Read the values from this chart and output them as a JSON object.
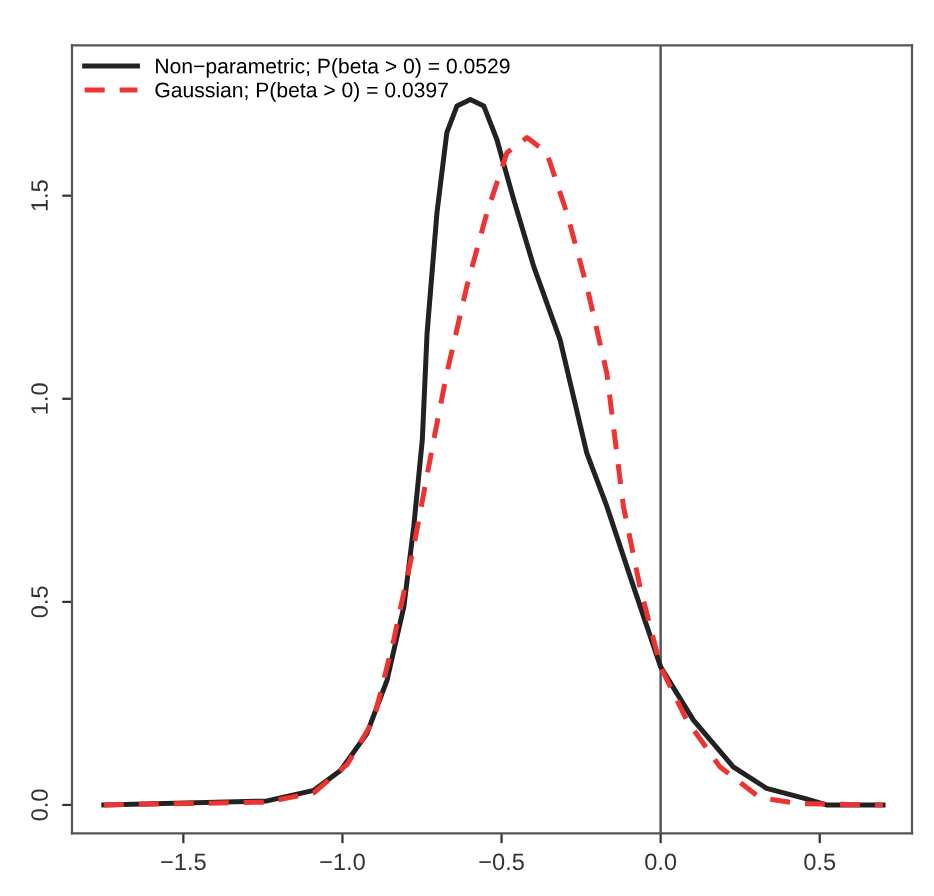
{
  "chart_data": {
    "type": "line",
    "series": [
      {
        "name": "Non−parametric; P(beta > 0) = 0.0529",
        "color": "#222222",
        "line_style": "solid",
        "x": [
          -1.75,
          -1.237,
          -1.09,
          -1.006,
          -0.923,
          -0.86,
          -0.807,
          -0.776,
          -0.749,
          -0.734,
          -0.703,
          -0.672,
          -0.64,
          -0.598,
          -0.556,
          -0.515,
          -0.462,
          -0.399,
          -0.316,
          -0.232,
          -0.169,
          -0.085,
          0.0,
          0.103,
          0.228,
          0.333,
          0.458,
          0.521,
          0.699
        ],
        "values": [
          0.0,
          0.01,
          0.036,
          0.085,
          0.176,
          0.307,
          0.488,
          0.685,
          0.899,
          1.162,
          1.458,
          1.655,
          1.721,
          1.737,
          1.721,
          1.639,
          1.491,
          1.326,
          1.145,
          0.866,
          0.735,
          0.537,
          0.34,
          0.209,
          0.094,
          0.041,
          0.015,
          0.0,
          0.0
        ]
      },
      {
        "name": "Gaussian; P(beta > 0) = 0.0397",
        "color": "#ee3333",
        "line_style": "dashed",
        "x": [
          -1.75,
          -1.237,
          -1.09,
          -0.985,
          -0.902,
          -0.839,
          -0.776,
          -0.713,
          -0.672,
          -0.609,
          -0.546,
          -0.483,
          -0.42,
          -0.358,
          -0.295,
          -0.232,
          -0.169,
          -0.117,
          -0.065,
          0.0,
          0.082,
          0.186,
          0.312,
          0.437,
          0.699
        ],
        "values": [
          0.0,
          0.007,
          0.03,
          0.1,
          0.209,
          0.406,
          0.636,
          0.899,
          1.063,
          1.277,
          1.458,
          1.606,
          1.643,
          1.606,
          1.458,
          1.277,
          1.063,
          0.735,
          0.537,
          0.34,
          0.209,
          0.094,
          0.018,
          0.003,
          0.0
        ]
      }
    ],
    "xlim": [
      -1.85,
      0.79
    ],
    "ylim": [
      -0.07,
      1.87
    ],
    "xticks": [
      {
        "value": -1.5,
        "label": "−1.5"
      },
      {
        "value": -1.0,
        "label": "−1.0"
      },
      {
        "value": -0.5,
        "label": "−0.5"
      },
      {
        "value": 0.0,
        "label": "0.0"
      },
      {
        "value": 0.5,
        "label": "0.5"
      }
    ],
    "yticks": [
      {
        "value": 0.0,
        "label": "0.0"
      },
      {
        "value": 0.5,
        "label": "0.5"
      },
      {
        "value": 1.0,
        "label": "1.0"
      },
      {
        "value": 1.5,
        "label": "1.5"
      }
    ],
    "ref_lines": [
      {
        "axis": "x",
        "value": 0.0,
        "label": null,
        "color": "#555555"
      }
    ],
    "legend": "top left",
    "grid": false
  }
}
